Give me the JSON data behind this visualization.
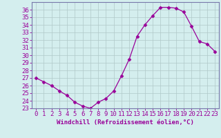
{
  "x": [
    0,
    1,
    2,
    3,
    4,
    5,
    6,
    7,
    8,
    9,
    10,
    11,
    12,
    13,
    14,
    15,
    16,
    17,
    18,
    19,
    20,
    21,
    22,
    23
  ],
  "y": [
    27.0,
    26.5,
    26.0,
    25.3,
    24.7,
    23.8,
    23.3,
    23.0,
    23.8,
    24.3,
    25.3,
    27.3,
    29.5,
    32.5,
    34.0,
    35.2,
    36.3,
    36.3,
    36.2,
    35.7,
    33.8,
    31.8,
    31.5,
    30.5
  ],
  "line_color": "#990099",
  "marker": "D",
  "marker_size": 2.5,
  "bg_color": "#d4eeee",
  "grid_color": "#b0c8c8",
  "xlabel": "Windchill (Refroidissement éolien,°C)",
  "xlabel_color": "#990099",
  "tick_color": "#990099",
  "ylim": [
    23,
    37
  ],
  "xlim": [
    -0.5,
    23.5
  ],
  "yticks": [
    23,
    24,
    25,
    26,
    27,
    28,
    29,
    30,
    31,
    32,
    33,
    34,
    35,
    36
  ],
  "xticks": [
    0,
    1,
    2,
    3,
    4,
    5,
    6,
    7,
    8,
    9,
    10,
    11,
    12,
    13,
    14,
    15,
    16,
    17,
    18,
    19,
    20,
    21,
    22,
    23
  ],
  "spine_color": "#7777aa",
  "tick_fontsize": 6.5,
  "xlabel_fontsize": 6.5
}
